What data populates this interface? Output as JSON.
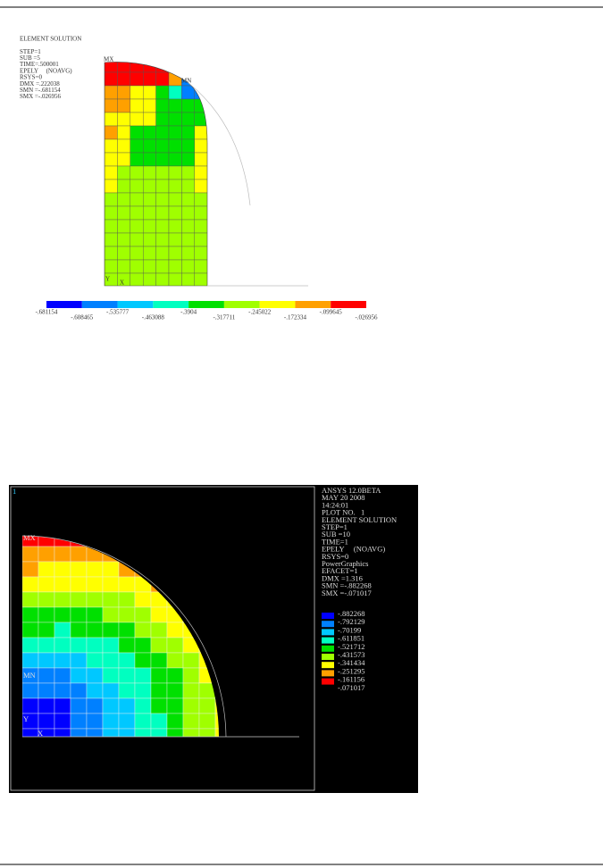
{
  "figure1": {
    "header": [
      "ELEMENT SOLUTION",
      "STEP=1",
      "SUB =5",
      "TIME=.500001",
      "EPELY     (NOAVG)",
      "RSYS=0",
      "DMX =.222038",
      "SMN =-.681154",
      "SMX =-.026956"
    ],
    "markers": {
      "max": "MX",
      "min": "MN"
    },
    "axes": {
      "y": "Y",
      "x": "X"
    },
    "legend": [
      "-.681154",
      "-.608465",
      "-.535777",
      "-.463088",
      "-.3904",
      "-.317711",
      "-.245022",
      "-.172334",
      "-.099645",
      "-.026956"
    ]
  },
  "figure2": {
    "window_number": "1",
    "info": [
      "ANSYS 12.0BETA",
      "MAY 20 2008",
      "14:24:01",
      "PLOT NO.   1",
      "ELEMENT SOLUTION",
      "STEP=1",
      "SUB =10",
      "TIME=1",
      "EPELY     (NOAVG)",
      "RSYS=0",
      "PowerGraphics",
      "EFACET=1",
      "DMX =1.316",
      "SMN =-.882268",
      "SMX =-.071017"
    ],
    "markers": {
      "max": "MX",
      "min": "MN"
    },
    "axes": {
      "y": "Y",
      "x": "X"
    },
    "legend": [
      "-.882268",
      "-.792129",
      "-.70199",
      "-.611851",
      "-.521712",
      "-.431573",
      "-.341434",
      "-.251295",
      "-.161156",
      "-.071017"
    ]
  }
}
